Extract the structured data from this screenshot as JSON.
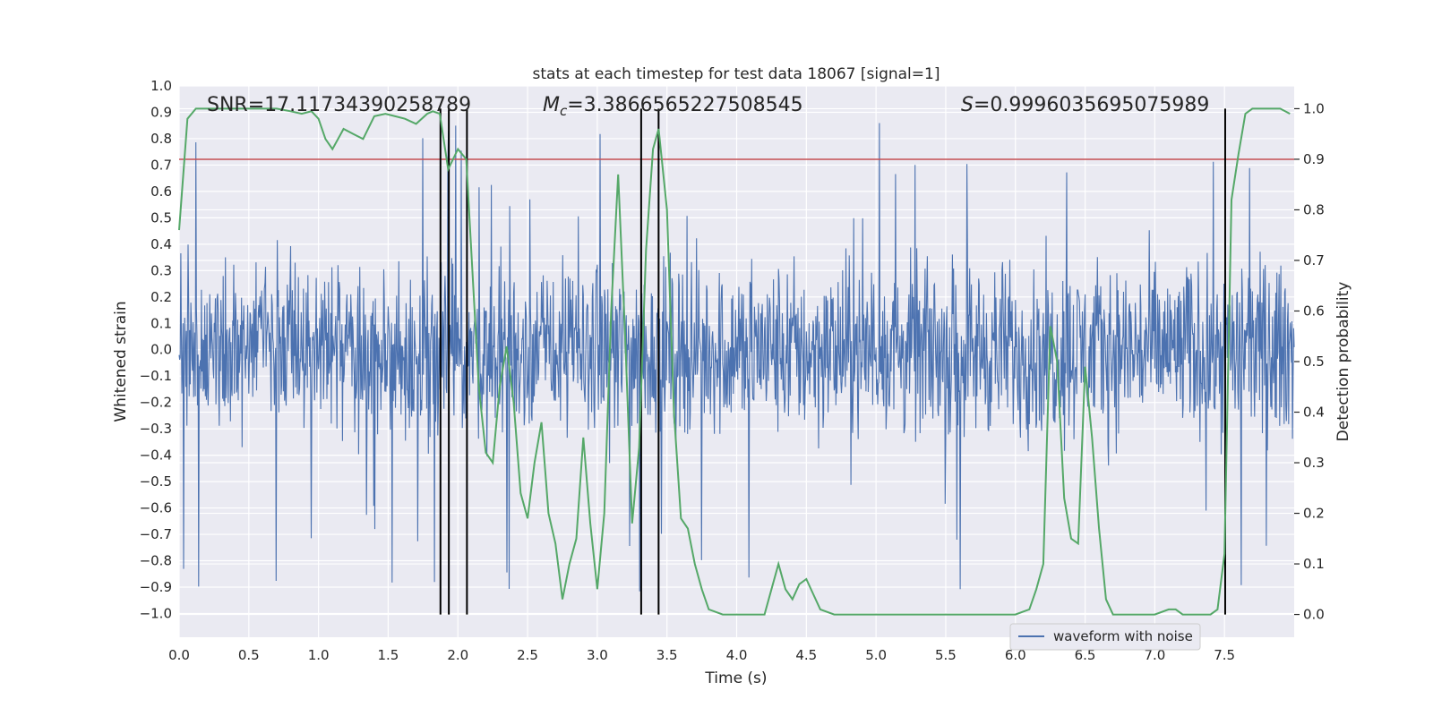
{
  "chart_data": {
    "type": "line",
    "title": "stats at each timestep for test data 18067 [signal=1]",
    "xlabel": "Time (s)",
    "ylabel_left": "Whitened strain",
    "ylabel_right": "Detection probability",
    "xlim": [
      0.0,
      8.0
    ],
    "ylim_left": [
      -1.09,
      1.0
    ],
    "ylim_right": [
      -0.045,
      1.045
    ],
    "x_ticks": [
      "0.0",
      "0.5",
      "1.0",
      "1.5",
      "2.0",
      "2.5",
      "3.0",
      "3.5",
      "4.0",
      "4.5",
      "5.0",
      "5.5",
      "6.0",
      "6.5",
      "7.0",
      "7.5"
    ],
    "y_left_ticks": [
      "1.0",
      "0.9",
      "0.8",
      "0.7",
      "0.6",
      "0.5",
      "0.4",
      "0.3",
      "0.2",
      "0.1",
      "0.0",
      "−0.1",
      "−0.2",
      "−0.3",
      "−0.4",
      "−0.5",
      "−0.6",
      "−0.7",
      "−0.8",
      "−0.9",
      "−1.0"
    ],
    "y_right_ticks": [
      "1.0",
      "0.9",
      "0.8",
      "0.7",
      "0.6",
      "0.5",
      "0.4",
      "0.3",
      "0.2",
      "0.1",
      "0.0"
    ],
    "grid": true,
    "legend_placement": "lower-right",
    "annotations": {
      "snr": "SNR=17.11734390258789",
      "mc_symbol": "M",
      "mc_sub": "c",
      "mc_value": "=3.3866565227508545",
      "s_symbol": "S",
      "s_value": "=0.9996035695075989"
    },
    "threshold": {
      "value": 0.9,
      "axis": "right",
      "color": "#c44e52"
    },
    "vertical_lines": [
      1.875,
      1.935,
      2.065,
      3.315,
      3.44,
      7.505
    ],
    "waveform": {
      "name": "waveform with noise",
      "color": "#4c72b0",
      "typical_envelope": [
        -0.48,
        0.48
      ],
      "peak_range": [
        -0.99,
        0.91
      ]
    },
    "probability": {
      "color": "#55a868",
      "x": [
        0.0,
        0.06,
        0.12,
        0.2,
        0.3,
        0.4,
        0.5,
        0.6,
        0.7,
        0.8,
        0.88,
        0.95,
        1.0,
        1.05,
        1.1,
        1.18,
        1.25,
        1.32,
        1.4,
        1.48,
        1.55,
        1.62,
        1.7,
        1.78,
        1.82,
        1.87,
        1.93,
        2.0,
        2.06,
        2.1,
        2.15,
        2.2,
        2.25,
        2.3,
        2.35,
        2.4,
        2.45,
        2.5,
        2.55,
        2.6,
        2.65,
        2.7,
        2.75,
        2.8,
        2.85,
        2.9,
        2.95,
        3.0,
        3.05,
        3.1,
        3.15,
        3.2,
        3.25,
        3.3,
        3.35,
        3.4,
        3.44,
        3.5,
        3.55,
        3.6,
        3.65,
        3.7,
        3.75,
        3.8,
        3.9,
        4.0,
        4.1,
        4.15,
        4.2,
        4.25,
        4.3,
        4.35,
        4.4,
        4.45,
        4.5,
        4.55,
        4.6,
        4.7,
        4.8,
        5.0,
        5.2,
        5.4,
        5.6,
        5.8,
        6.0,
        6.1,
        6.15,
        6.2,
        6.25,
        6.3,
        6.35,
        6.4,
        6.45,
        6.5,
        6.55,
        6.6,
        6.65,
        6.7,
        6.8,
        7.0,
        7.1,
        7.15,
        7.2,
        7.3,
        7.4,
        7.45,
        7.5,
        7.55,
        7.6,
        7.65,
        7.7,
        7.8,
        7.9,
        7.97
      ],
      "y": [
        0.76,
        0.98,
        1.0,
        1.0,
        1.0,
        1.0,
        1.0,
        1.0,
        1.0,
        0.995,
        0.99,
        0.995,
        0.98,
        0.94,
        0.92,
        0.96,
        0.95,
        0.94,
        0.985,
        0.99,
        0.985,
        0.98,
        0.97,
        0.99,
        0.995,
        0.99,
        0.88,
        0.92,
        0.9,
        0.7,
        0.45,
        0.32,
        0.3,
        0.45,
        0.53,
        0.42,
        0.24,
        0.19,
        0.3,
        0.38,
        0.2,
        0.14,
        0.03,
        0.1,
        0.15,
        0.35,
        0.18,
        0.05,
        0.2,
        0.6,
        0.87,
        0.55,
        0.18,
        0.33,
        0.72,
        0.92,
        0.96,
        0.8,
        0.4,
        0.19,
        0.17,
        0.1,
        0.05,
        0.01,
        0.0,
        0.0,
        0.0,
        0.0,
        0.0,
        0.05,
        0.1,
        0.05,
        0.03,
        0.06,
        0.07,
        0.04,
        0.01,
        0.0,
        0.0,
        0.0,
        0.0,
        0.0,
        0.0,
        0.0,
        0.0,
        0.01,
        0.05,
        0.1,
        0.57,
        0.5,
        0.23,
        0.15,
        0.14,
        0.49,
        0.35,
        0.17,
        0.03,
        0.0,
        0.0,
        0.0,
        0.01,
        0.01,
        0.0,
        0.0,
        0.0,
        0.01,
        0.12,
        0.82,
        0.91,
        0.99,
        1.0,
        1.0,
        1.0,
        0.99
      ]
    }
  }
}
